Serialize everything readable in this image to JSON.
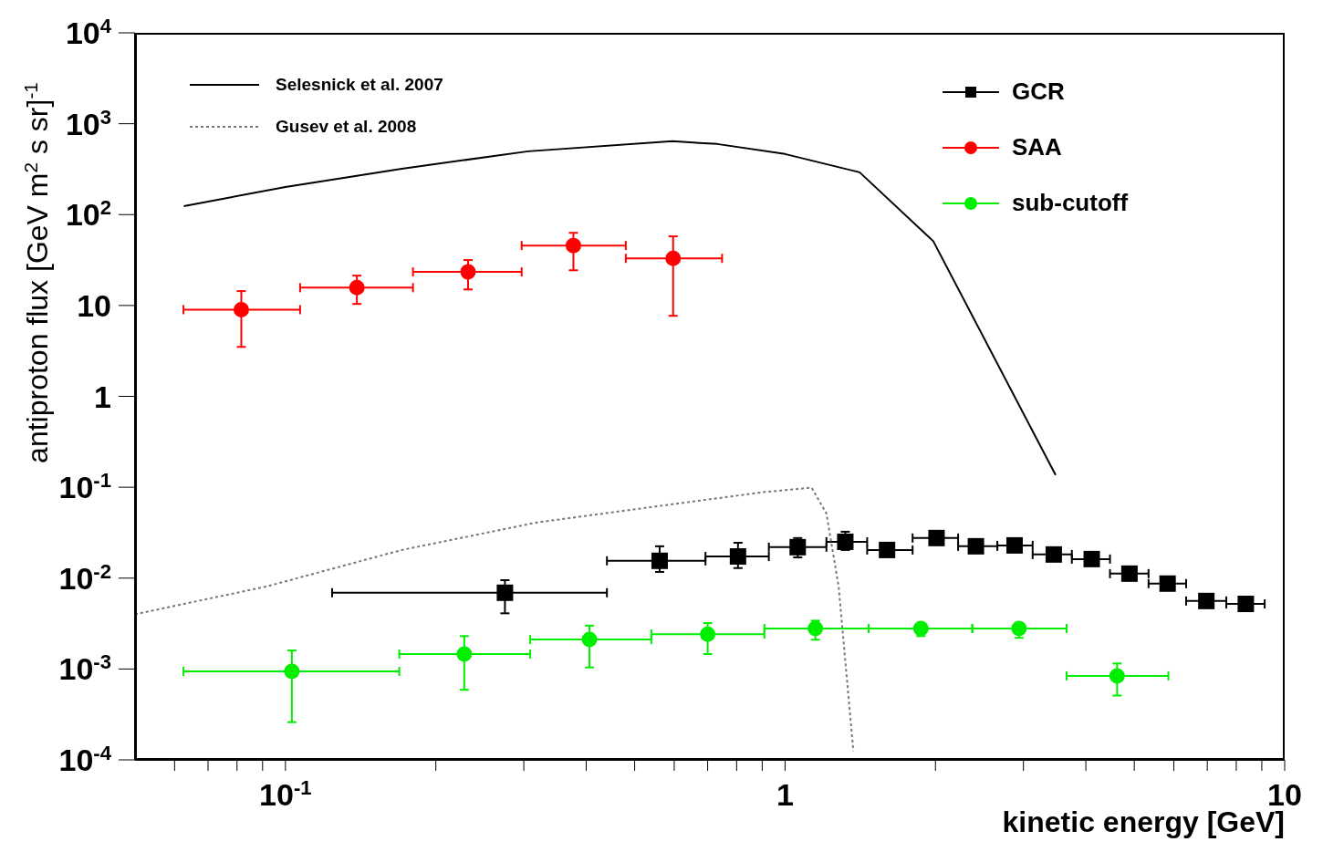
{
  "chart_data": {
    "type": "scatter",
    "xlabel": "kinetic energy [GeV]",
    "ylabel": "antiproton flux [GeV m$^{2}$ s sr]$^{-1}$",
    "log": "xy",
    "xlim": [
      0.05,
      10
    ],
    "xticks": [
      {
        "value": 0.06,
        "label": null
      },
      {
        "value": 0.07,
        "label": null
      },
      {
        "value": 0.08,
        "label": null
      },
      {
        "value": 0.09,
        "label": null
      },
      {
        "value": 0.1,
        "label": "10$^{-1}$"
      },
      {
        "value": 0.2,
        "label": null
      },
      {
        "value": 0.3,
        "label": null
      },
      {
        "value": 0.4,
        "label": null
      },
      {
        "value": 0.5,
        "label": null
      },
      {
        "value": 0.6,
        "label": null
      },
      {
        "value": 0.7,
        "label": null
      },
      {
        "value": 0.8,
        "label": null
      },
      {
        "value": 0.9,
        "label": null
      },
      1,
      {
        "value": 2,
        "label": null
      },
      {
        "value": 3,
        "label": null
      },
      {
        "value": 4,
        "label": null
      },
      {
        "value": 5,
        "label": null
      },
      {
        "value": 6,
        "label": null
      },
      {
        "value": 7,
        "label": null
      },
      {
        "value": 8,
        "label": null
      },
      {
        "value": 9,
        "label": null
      },
      10
    ],
    "ylim": [
      0.0001,
      10000
    ],
    "yticks": [
      {
        "value": 0.0001,
        "label": "10$^{-4}$"
      },
      {
        "value": 0.001,
        "label": "10$^{-3}$"
      },
      {
        "value": 0.01,
        "label": "10$^{-2}$"
      },
      {
        "value": 0.1,
        "label": "10$^{-1}$"
      },
      1,
      10,
      {
        "value": 100,
        "label": "10$^{2}$"
      },
      {
        "value": 1000,
        "label": "10$^{3}$"
      },
      {
        "value": 10000,
        "label": "10$^{4}$"
      }
    ],
    "legend": "top",
    "series": [
      {
        "name": "Selesnick et al. 2007",
        "type": "line",
        "color": "#000000",
        "line_style": "solid",
        "marker": "none",
        "x": [
          0.0626,
          0.1,
          0.171,
          0.306,
          0.595,
          0.732,
          1,
          1.41,
          1.98,
          3.48
        ],
        "values": [
          124,
          201,
          320,
          497,
          641,
          598,
          464,
          292,
          51,
          0.136
        ]
      },
      {
        "name": "Gusev et al. 2008",
        "type": "line",
        "color": "#777777",
        "line_style": "dotted",
        "marker": "none",
        "x": [
          0.05,
          0.0917,
          0.171,
          0.319,
          0.595,
          0.901,
          1.13,
          1.21,
          1.28,
          1.37
        ],
        "values": [
          0.004,
          0.0081,
          0.0204,
          0.041,
          0.065,
          0.088,
          0.099,
          0.0515,
          0.0081,
          0.000125
        ]
      },
      {
        "name": "GCR",
        "color": "#000000",
        "marker": "square",
        "x": [
          0.275,
          0.561,
          0.805,
          1.06,
          1.32,
          1.6,
          2.01,
          2.41,
          2.88,
          3.45,
          4.11,
          4.89,
          5.83,
          6.97,
          8.36
        ],
        "values": [
          0.0069,
          0.0155,
          0.0173,
          0.0219,
          0.0251,
          0.0204,
          0.0276,
          0.0224,
          0.0229,
          0.0182,
          0.0162,
          0.0112,
          0.0087,
          0.0056,
          0.0052
        ],
        "errors": [
          [
            0.0041,
            0.0095
          ],
          [
            0.0117,
            0.0224
          ],
          [
            0.0129,
            0.0245
          ],
          [
            0.0169,
            0.0276
          ],
          [
            0.0204,
            0.0324
          ],
          null,
          null,
          null,
          null,
          null,
          null,
          null,
          null,
          null,
          null
        ],
        "xerrors": [
          [
            0.124,
            0.44
          ],
          [
            0.44,
            0.693
          ],
          [
            0.693,
            0.928
          ],
          [
            0.928,
            1.21
          ],
          [
            1.21,
            1.46
          ],
          [
            1.46,
            1.8
          ],
          [
            1.8,
            2.22
          ],
          [
            2.22,
            2.66
          ],
          [
            2.66,
            3.13
          ],
          [
            3.13,
            3.75
          ],
          [
            3.75,
            4.47
          ],
          [
            4.47,
            5.34
          ],
          [
            5.34,
            6.35
          ],
          [
            6.35,
            7.64
          ],
          [
            7.64,
            9.12
          ]
        ]
      },
      {
        "name": "SAA",
        "color": "#ff0000",
        "marker": "circle",
        "x": [
          0.0816,
          0.139,
          0.232,
          0.377,
          0.597
        ],
        "values": [
          9.0,
          15.7,
          23.4,
          45.7,
          33
        ],
        "errors": [
          [
            3.5,
            14.4
          ],
          [
            10.4,
            21.3
          ],
          [
            15,
            31.6
          ],
          [
            24.4,
            63
          ],
          [
            7.7,
            57.6
          ]
        ],
        "xerrors": [
          [
            0.0625,
            0.107
          ],
          [
            0.107,
            0.18
          ],
          [
            0.18,
            0.297
          ],
          [
            0.297,
            0.48
          ],
          [
            0.48,
            0.748
          ]
        ]
      },
      {
        "name": "sub-cutoff",
        "color": "#00ee00",
        "marker": "circle",
        "x": [
          0.103,
          0.228,
          0.406,
          0.7,
          1.15,
          1.87,
          2.94,
          4.62
        ],
        "values": [
          0.00094,
          0.00146,
          0.00211,
          0.00242,
          0.00279,
          0.00279,
          0.00279,
          0.00084
        ],
        "errors": [
          [
            0.00026,
            0.0016
          ],
          [
            0.00059,
            0.0023
          ],
          [
            0.00104,
            0.003
          ],
          [
            0.00146,
            0.0032
          ],
          [
            0.0021,
            0.0034
          ],
          [
            0.0023,
            0.0031
          ],
          [
            0.0022,
            0.0032
          ],
          [
            0.00051,
            0.00115
          ]
        ],
        "xerrors": [
          [
            0.0625,
            0.169
          ],
          [
            0.169,
            0.309
          ],
          [
            0.309,
            0.54
          ],
          [
            0.54,
            0.909
          ],
          [
            0.909,
            1.47
          ],
          [
            1.47,
            2.37
          ],
          [
            2.37,
            3.66
          ],
          [
            3.66,
            5.85
          ]
        ]
      }
    ]
  }
}
